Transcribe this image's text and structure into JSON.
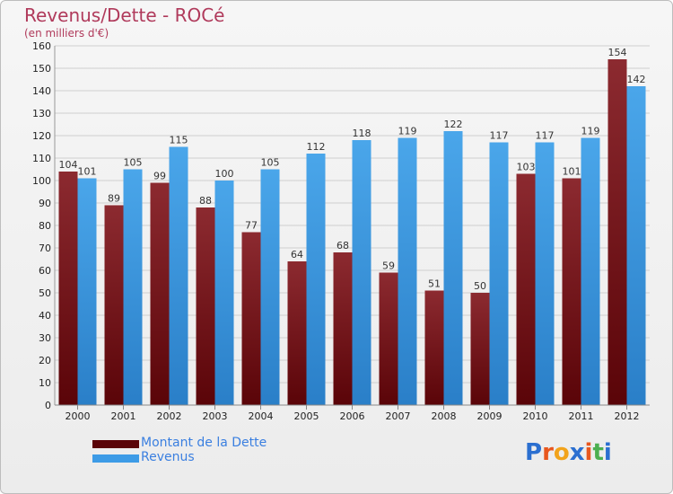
{
  "title": "Revenus/Dette - ROCé",
  "subtitle": "(en milliers d'€)",
  "logo": [
    "P",
    "r",
    "o",
    "x",
    "i",
    "t",
    "i"
  ],
  "logo_colors": [
    "#2b6fd0",
    "#e8571e",
    "#f2a31b",
    "#2b6fd0",
    "#e8571e",
    "#4caf50",
    "#2b6fd0"
  ],
  "colors": {
    "dette": "#7a1a1e",
    "revenus": "#3d9be6"
  },
  "chart_data": {
    "type": "bar",
    "title": "Revenus/Dette - ROCé",
    "subtitle": "(en milliers d'€)",
    "categories": [
      "2000",
      "2001",
      "2002",
      "2003",
      "2004",
      "2005",
      "2006",
      "2007",
      "2008",
      "2009",
      "2010",
      "2011",
      "2012"
    ],
    "series": [
      {
        "name": "Montant de la Dette",
        "values": [
          104,
          89,
          99,
          88,
          77,
          64,
          68,
          59,
          51,
          50,
          103,
          101,
          154
        ]
      },
      {
        "name": "Revenus",
        "values": [
          101,
          105,
          115,
          100,
          105,
          112,
          118,
          119,
          122,
          117,
          117,
          119,
          142
        ]
      }
    ],
    "ylim": [
      0,
      160
    ],
    "yticks": [
      0,
      10,
      20,
      30,
      40,
      50,
      60,
      70,
      80,
      90,
      100,
      110,
      120,
      130,
      140,
      150,
      160
    ],
    "grid": true,
    "legend": "bottom-left"
  }
}
